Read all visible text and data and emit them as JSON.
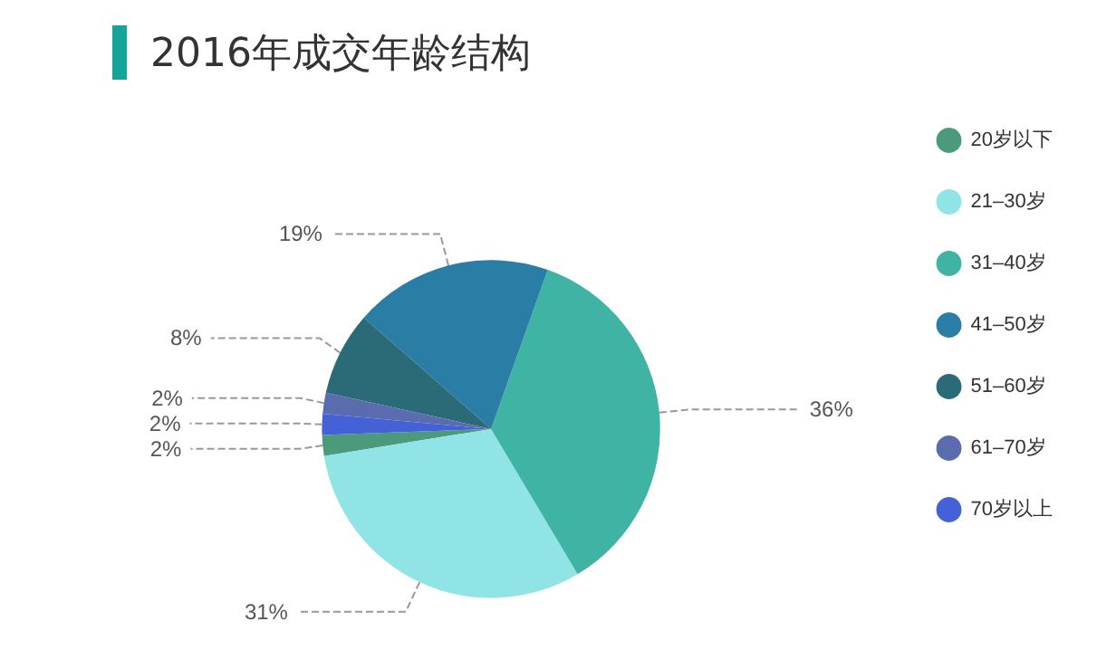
{
  "chart_data": {
    "type": "pie",
    "title": "2016年成交年龄结构",
    "categories": [
      "20岁以下",
      "21–30岁",
      "31–40岁",
      "41–50岁",
      "51–60岁",
      "61–70岁",
      "70岁以上"
    ],
    "values": [
      2,
      31,
      36,
      19,
      8,
      2,
      2
    ],
    "value_labels": [
      "2%",
      "31%",
      "36%",
      "19%",
      "8%",
      "2%",
      "2%"
    ],
    "colors": [
      "#4c9a7c",
      "#90e4e6",
      "#3fb3a4",
      "#2a7da4",
      "#2b6b78",
      "#5b6cae",
      "#4561d8"
    ],
    "legend": "right"
  }
}
